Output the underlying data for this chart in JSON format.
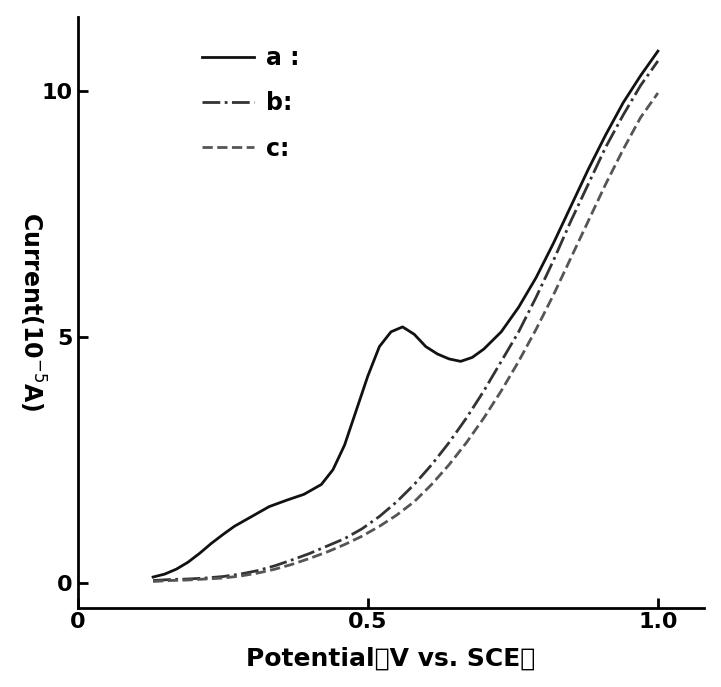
{
  "title": "",
  "xlabel": "Potential （V vs. SCE）",
  "ylabel": "Current(10⁻⁵A)",
  "xlim": [
    0,
    1.08
  ],
  "ylim": [
    -0.5,
    11.5
  ],
  "xticks": [
    0,
    0.5,
    1.0
  ],
  "yticks": [
    0,
    5,
    10
  ],
  "background_color": "#ffffff",
  "curve_a": {
    "x": [
      0.13,
      0.15,
      0.17,
      0.19,
      0.21,
      0.23,
      0.25,
      0.27,
      0.3,
      0.33,
      0.36,
      0.39,
      0.42,
      0.44,
      0.46,
      0.48,
      0.5,
      0.52,
      0.54,
      0.56,
      0.58,
      0.6,
      0.62,
      0.64,
      0.66,
      0.68,
      0.7,
      0.73,
      0.76,
      0.79,
      0.82,
      0.85,
      0.88,
      0.91,
      0.94,
      0.97,
      1.0
    ],
    "y": [
      0.12,
      0.18,
      0.28,
      0.42,
      0.6,
      0.8,
      0.98,
      1.15,
      1.35,
      1.55,
      1.68,
      1.8,
      2.0,
      2.3,
      2.8,
      3.5,
      4.2,
      4.8,
      5.1,
      5.2,
      5.05,
      4.8,
      4.65,
      4.55,
      4.5,
      4.58,
      4.75,
      5.1,
      5.6,
      6.2,
      6.9,
      7.65,
      8.4,
      9.1,
      9.75,
      10.3,
      10.8
    ],
    "style": "solid",
    "color": "#111111",
    "linewidth": 2.0
  },
  "curve_b": {
    "x": [
      0.13,
      0.16,
      0.19,
      0.22,
      0.25,
      0.28,
      0.31,
      0.34,
      0.37,
      0.4,
      0.43,
      0.46,
      0.49,
      0.52,
      0.55,
      0.58,
      0.61,
      0.64,
      0.67,
      0.7,
      0.73,
      0.76,
      0.79,
      0.82,
      0.85,
      0.88,
      0.91,
      0.94,
      0.97,
      1.0
    ],
    "y": [
      0.05,
      0.07,
      0.08,
      0.1,
      0.13,
      0.18,
      0.25,
      0.35,
      0.47,
      0.6,
      0.75,
      0.9,
      1.1,
      1.35,
      1.65,
      2.0,
      2.4,
      2.85,
      3.35,
      3.9,
      4.5,
      5.1,
      5.8,
      6.55,
      7.35,
      8.1,
      8.85,
      9.5,
      10.1,
      10.6
    ],
    "style": "dashdot",
    "color": "#333333",
    "linewidth": 2.0
  },
  "curve_c": {
    "x": [
      0.13,
      0.16,
      0.19,
      0.22,
      0.25,
      0.28,
      0.31,
      0.34,
      0.37,
      0.4,
      0.43,
      0.46,
      0.49,
      0.52,
      0.55,
      0.58,
      0.61,
      0.64,
      0.67,
      0.7,
      0.73,
      0.76,
      0.79,
      0.82,
      0.85,
      0.88,
      0.91,
      0.94,
      0.97,
      1.0
    ],
    "y": [
      0.03,
      0.05,
      0.06,
      0.08,
      0.1,
      0.14,
      0.2,
      0.28,
      0.38,
      0.5,
      0.63,
      0.78,
      0.95,
      1.15,
      1.38,
      1.65,
      2.0,
      2.4,
      2.85,
      3.35,
      3.9,
      4.5,
      5.15,
      5.85,
      6.6,
      7.35,
      8.1,
      8.8,
      9.45,
      9.95
    ],
    "style": "dashed",
    "color": "#555555",
    "linewidth": 2.0
  },
  "legend_fontsize": 17,
  "axis_label_fontsize": 17,
  "tick_fontsize": 16
}
